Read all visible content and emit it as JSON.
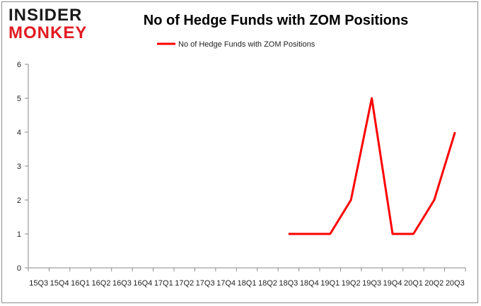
{
  "brand": {
    "line1": "INSIDER",
    "line2": "MONKEY",
    "dark_color": "#1a1a1a",
    "accent_color": "#e11b22"
  },
  "chart_data": {
    "type": "line",
    "title": "No of Hedge Funds with ZOM Positions",
    "xlabel": "",
    "ylabel": "",
    "categories": [
      "15Q3",
      "15Q4",
      "16Q1",
      "16Q2",
      "16Q3",
      "16Q4",
      "17Q1",
      "17Q2",
      "17Q3",
      "17Q4",
      "18Q1",
      "18Q2",
      "18Q3",
      "18Q4",
      "19Q1",
      "19Q2",
      "19Q3",
      "19Q4",
      "20Q1",
      "20Q2",
      "20Q3"
    ],
    "series": [
      {
        "name": "No of Hedge Funds with ZOM Positions",
        "color": "#ff0000",
        "values": [
          null,
          null,
          null,
          null,
          null,
          null,
          null,
          null,
          null,
          null,
          null,
          null,
          1,
          1,
          1,
          2,
          5,
          1,
          1,
          2,
          4
        ]
      }
    ],
    "ylim": [
      0,
      6
    ],
    "yticks": [
      0,
      1,
      2,
      3,
      4,
      5,
      6
    ],
    "grid": false,
    "legend_position": "top-center"
  }
}
